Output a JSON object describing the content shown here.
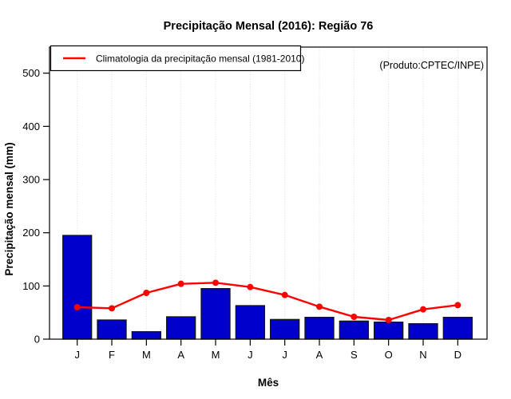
{
  "chart_data": {
    "type": "bar",
    "title": "Precipitação Mensal (2016): Região 76",
    "xlabel": "Mês",
    "ylabel": "Precipitação mensal (mm)",
    "source_note": "(Produto:CPTEC/INPE)",
    "categories": [
      "J",
      "F",
      "M",
      "A",
      "M",
      "J",
      "J",
      "A",
      "S",
      "O",
      "N",
      "D"
    ],
    "y_ticks": [
      0,
      100,
      200,
      300,
      400,
      500
    ],
    "ylim": [
      0,
      548
    ],
    "grid": "vertical-dotted",
    "legend": {
      "position": "top-left",
      "entries": [
        {
          "label": "Climatologia da precipitação mensal (1981-2010)",
          "color": "#FF0000",
          "type": "line"
        }
      ]
    },
    "series": [
      {
        "name": "Precipitação mensal 2016",
        "type": "bar",
        "color": "#0000CD",
        "values": [
          195,
          36,
          14,
          42,
          95,
          63,
          37,
          41,
          34,
          32,
          29,
          41
        ]
      },
      {
        "name": "Climatologia da precipitação mensal (1981-2010)",
        "type": "line",
        "color": "#FF0000",
        "values": [
          60,
          58,
          87,
          104,
          106,
          98,
          83,
          61,
          42,
          36,
          56,
          64
        ]
      }
    ],
    "colors": {
      "bar": "#0000CD",
      "bar_border": "#141414",
      "line": "#FF0000",
      "grid": "#DCDCDC",
      "axis": "#000000",
      "note": "#909090"
    }
  }
}
